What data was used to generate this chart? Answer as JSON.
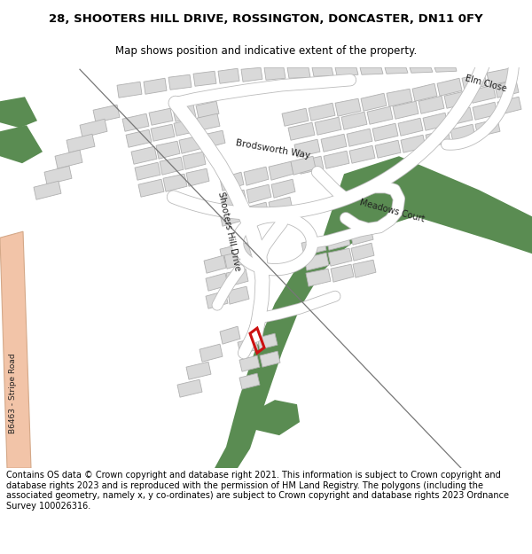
{
  "title_line1": "28, SHOOTERS HILL DRIVE, ROSSINGTON, DONCASTER, DN11 0FY",
  "title_line2": "Map shows position and indicative extent of the property.",
  "footer": "Contains OS data © Crown copyright and database right 2021. This information is subject to Crown copyright and database rights 2023 and is reproduced with the permission of HM Land Registry. The polygons (including the associated geometry, namely x, y co-ordinates) are subject to Crown copyright and database rights 2023 Ordnance Survey 100026316.",
  "bg_color": "#ffffff",
  "map_bg": "#f5f3ef",
  "green_color": "#5a8c52",
  "building_color": "#d9d9d9",
  "building_edge": "#b0b0b0",
  "highlight_color": "#cc1111",
  "road_pink": "#f2c4a8",
  "road_white": "#ffffff",
  "road_edge": "#cccccc",
  "title_fontsize": 9.5,
  "subtitle_fontsize": 8.5,
  "footer_fontsize": 7.0
}
